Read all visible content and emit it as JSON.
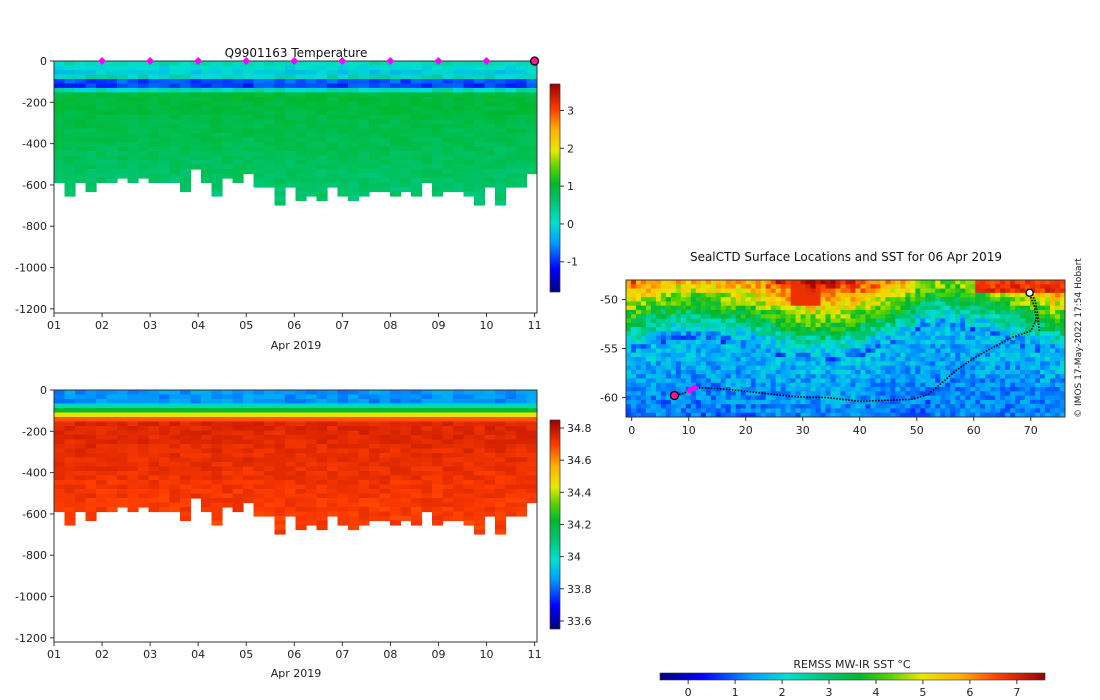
{
  "page": {
    "background": "#ffffff"
  },
  "chart_data": [
    {
      "id": "temperature",
      "type": "heatmap",
      "title": "Q9901163  Temperature",
      "xlabel": "Apr 2019",
      "ylabel": "",
      "x_ticks": [
        "01",
        "02",
        "03",
        "04",
        "05",
        "06",
        "07",
        "08",
        "09",
        "10",
        "11"
      ],
      "xlim": [
        1,
        11.05
      ],
      "y_ticks": [
        0,
        -200,
        -400,
        -600,
        -800,
        -1000,
        -1200
      ],
      "y_tick_labels": [
        "0",
        "-200",
        "-400",
        "-600",
        "-800",
        "-1000",
        "-1200"
      ],
      "ylim": [
        -1220,
        0
      ],
      "colorbar": {
        "min": -1.8,
        "max": 3.7,
        "ticks": [
          3,
          2,
          1,
          0,
          -1
        ],
        "tick_labels": [
          "3",
          "2",
          "1",
          "0",
          "-1"
        ]
      },
      "profile_bottom_depths": [
        -610,
        -690,
        -610,
        -660,
        -610,
        -610,
        -600,
        -610,
        -590,
        -630,
        -610,
        -610,
        -670,
        -560,
        -620,
        -680,
        -600,
        -620,
        -580,
        -650,
        -640,
        -740,
        -650,
        -710,
        -680,
        -710,
        -650,
        -690,
        -700,
        -690,
        -660,
        -670,
        -690,
        -660,
        -680,
        -620,
        -680,
        -660,
        -660,
        -690,
        -720,
        -640,
        -720,
        -640,
        -650,
        -580
      ],
      "layer_profile": {
        "surface_value": 0.2,
        "cold_layer_top": -60,
        "cold_layer_center": -110,
        "cold_layer_min": -1.4,
        "cold_layer_bottom": -160,
        "deep_value": 1.0,
        "bottom_value": 0.6
      },
      "profile_markers": {
        "days": [
          2,
          3,
          4,
          5,
          6,
          7,
          8,
          9,
          10
        ],
        "color": "#ff00ff"
      },
      "last_profile_marker": {
        "day": 11,
        "color": "#ff1493"
      }
    },
    {
      "id": "salinity",
      "type": "heatmap",
      "title": "",
      "xlabel": "Apr 2019",
      "ylabel": "",
      "x_ticks": [
        "01",
        "02",
        "03",
        "04",
        "05",
        "06",
        "07",
        "08",
        "09",
        "10",
        "11"
      ],
      "xlim": [
        1,
        11.05
      ],
      "y_ticks": [
        0,
        -200,
        -400,
        -600,
        -800,
        -1000,
        -1200
      ],
      "y_tick_labels": [
        "0",
        "-200",
        "-400",
        "-600",
        "-800",
        "-1000",
        "-1200"
      ],
      "ylim": [
        -1220,
        0
      ],
      "colorbar": {
        "min": 33.55,
        "max": 34.85,
        "ticks": [
          34.8,
          34.6,
          34.4,
          34.2,
          34,
          33.8,
          33.6
        ],
        "tick_labels": [
          "34.8",
          "34.6",
          "34.4",
          "34.2",
          "34",
          "33.8",
          "33.6"
        ]
      },
      "layer_profile": {
        "surface_value": 33.85,
        "halocline_top": -60,
        "halocline_bottom": -150,
        "deep_value": 34.75,
        "lower_value": 34.7
      }
    },
    {
      "id": "sst_map",
      "type": "heatmap",
      "title": "SealCTD Surface Locations and SST for 06 Apr 2019",
      "xlabel": "",
      "ylabel": "",
      "x_ticks": [
        0,
        10,
        20,
        30,
        40,
        50,
        60,
        70
      ],
      "xlim": [
        -1,
        76
      ],
      "y_ticks": [
        -50,
        -55,
        -60
      ],
      "ylim": [
        -62,
        -48
      ],
      "track": [
        [
          71.5,
          -53.2
        ],
        [
          71.2,
          -51.5
        ],
        [
          70.8,
          -50.2
        ],
        [
          70.2,
          -49.4
        ],
        [
          69.6,
          -49.2
        ],
        [
          70.6,
          -50.6
        ],
        [
          71,
          -52
        ],
        [
          70,
          -53.2
        ],
        [
          67,
          -53.8
        ],
        [
          63,
          -55
        ],
        [
          60,
          -56
        ],
        [
          57,
          -57.2
        ],
        [
          55,
          -58.2
        ],
        [
          52,
          -59.7
        ],
        [
          49,
          -60.2
        ],
        [
          44,
          -60.3
        ],
        [
          40,
          -60.4
        ],
        [
          37,
          -60.2
        ],
        [
          34,
          -60
        ],
        [
          31,
          -60
        ],
        [
          28,
          -59.9
        ],
        [
          25,
          -59.7
        ],
        [
          22,
          -59.5
        ],
        [
          19,
          -59.3
        ],
        [
          15,
          -59.1
        ],
        [
          12,
          -59
        ],
        [
          10.5,
          -59.3
        ],
        [
          9,
          -59.6
        ],
        [
          7.5,
          -59.8
        ]
      ],
      "start_marker": {
        "lon": 7.5,
        "lat": -59.8,
        "color": "#ff1493"
      },
      "end_marker": {
        "lon": 69.8,
        "lat": -49.3
      },
      "recent_points": {
        "lons": [
          10.2,
          11.0
        ],
        "lats": [
          -59.3,
          -59.0
        ],
        "color": "#ff00ff"
      },
      "colorbar": {
        "label": "REMSS MW-IR SST °C",
        "min": -0.6,
        "max": 7.6,
        "ticks": [
          0,
          1,
          2,
          3,
          4,
          5,
          6,
          7
        ],
        "tick_labels": [
          "0",
          "1",
          "2",
          "3",
          "4",
          "5",
          "6",
          "7"
        ]
      }
    }
  ],
  "credit": "© IMOS 17-May-2022 17:54 Hobart"
}
